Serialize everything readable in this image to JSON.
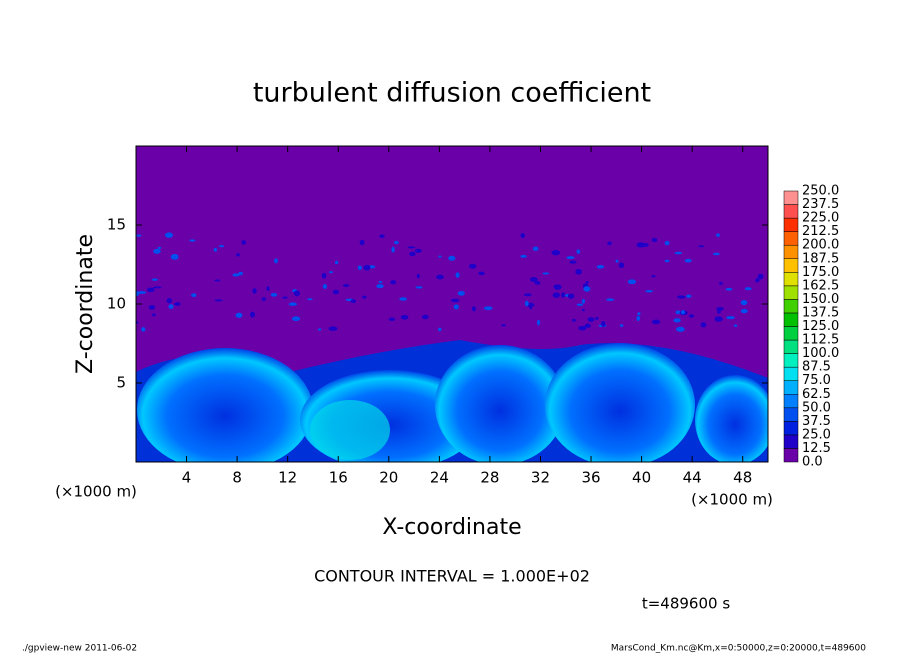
{
  "chart_data": {
    "type": "heatmap",
    "title": "turbulent diffusion coefficient",
    "x_label": "X-coordinate",
    "y_label": "Z-coordinate",
    "x_unit": "(×1000 m)",
    "y_unit": "(×1000 m)",
    "xlim": [
      0,
      50
    ],
    "xticks": [
      4,
      8,
      12,
      16,
      20,
      24,
      28,
      32,
      36,
      40,
      44,
      48
    ],
    "ylim": [
      0,
      20
    ],
    "yticks": [
      5,
      10,
      15
    ],
    "contour_interval": "CONTOUR INTERVAL = 1.000E+02",
    "time_label": "t=489600 s",
    "footer_left": "./gpview-new   2011-06-02",
    "footer_right": "MarsCond_Km.nc@Km,x=0:50000,z=0:20000,t=489600",
    "colorbar": {
      "levels": [
        {
          "value": 0,
          "label": "0.0"
        },
        12.5,
        {
          "value": 25,
          "label": "25.0"
        },
        37.5,
        {
          "value": 50,
          "label": "50.0"
        },
        62.5,
        {
          "value": 75,
          "label": "75.0"
        },
        87.5,
        {
          "value": 100,
          "label": "100.0"
        },
        112.5,
        {
          "value": 125,
          "label": "125.0"
        },
        137.5,
        {
          "value": 150,
          "label": "150.0"
        },
        162.5,
        {
          "value": 175,
          "label": "175.0"
        },
        187.5,
        {
          "value": 200,
          "label": "200.0"
        },
        212.5,
        {
          "value": 225,
          "label": "225.0"
        },
        237.5,
        {
          "value": 250,
          "label": "250.0"
        }
      ],
      "colors": [
        "#6a00a8",
        "#2000c8",
        "#0020e0",
        "#0050f0",
        "#0080ff",
        "#00b0ff",
        "#00e0f0",
        "#00f0c0",
        "#00e080",
        "#00d040",
        "#00c000",
        "#40d000",
        "#a0e000",
        "#e0e000",
        "#ffc000",
        "#ff9000",
        "#ff6000",
        "#ff3000",
        "#ff5050",
        "#ff9090"
      ]
    }
  }
}
